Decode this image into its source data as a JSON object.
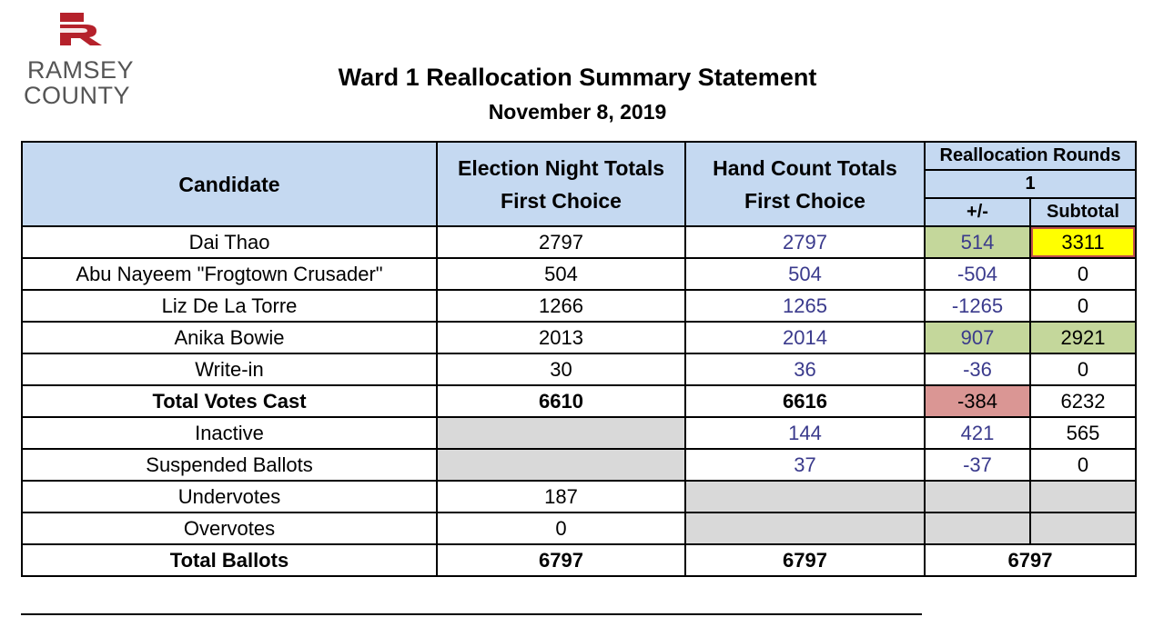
{
  "logo": {
    "line1": "RAMSEY",
    "line2": "COUNTY",
    "mark_color": "#b5212b"
  },
  "title": "Ward 1 Reallocation Summary Statement",
  "date": "November 8, 2019",
  "headers": {
    "candidate": "Candidate",
    "election_night_line1": "Election Night Totals",
    "election_night_line2": "First Choice",
    "hand_count_line1": "Hand Count Totals",
    "hand_count_line2": "First Choice",
    "reallocation_rounds": "Reallocation Rounds",
    "round_number": "1",
    "plus_minus": "+/-",
    "subtotal": "Subtotal"
  },
  "rows": [
    {
      "name": "Dai Thao",
      "election_night": "2797",
      "hand_count": "2797",
      "change": "514",
      "subtotal": "3311"
    },
    {
      "name": "Abu Nayeem \"Frogtown Crusader\"",
      "election_night": "504",
      "hand_count": "504",
      "change": "-504",
      "subtotal": "0"
    },
    {
      "name": "Liz De La Torre",
      "election_night": "1266",
      "hand_count": "1265",
      "change": "-1265",
      "subtotal": "0"
    },
    {
      "name": "Anika Bowie",
      "election_night": "2013",
      "hand_count": "2014",
      "change": "907",
      "subtotal": "2921"
    },
    {
      "name": "Write-in",
      "election_night": "30",
      "hand_count": "36",
      "change": "-36",
      "subtotal": "0"
    },
    {
      "name": "Total Votes Cast",
      "election_night": "6610",
      "hand_count": "6616",
      "change": "-384",
      "subtotal": "6232"
    },
    {
      "name": "Inactive",
      "election_night": "",
      "hand_count": "144",
      "change": "421",
      "subtotal": "565"
    },
    {
      "name": "Suspended Ballots",
      "election_night": "",
      "hand_count": "37",
      "change": "-37",
      "subtotal": "0"
    },
    {
      "name": "Undervotes",
      "election_night": "187",
      "hand_count": "",
      "change": "",
      "subtotal": ""
    },
    {
      "name": "Overvotes",
      "election_night": "0",
      "hand_count": "",
      "change": "",
      "subtotal": ""
    },
    {
      "name": "Total Ballots",
      "election_night": "6797",
      "hand_count": "6797",
      "reallocation_total": "6797"
    }
  ],
  "colors": {
    "header_bg": "#c5d9f1",
    "increase": "#c4d79b",
    "winner": "#ffff00",
    "decrease_total": "#da9694",
    "not_applicable": "#d9d9d9",
    "hand_count_text": "#3a3a8c"
  }
}
